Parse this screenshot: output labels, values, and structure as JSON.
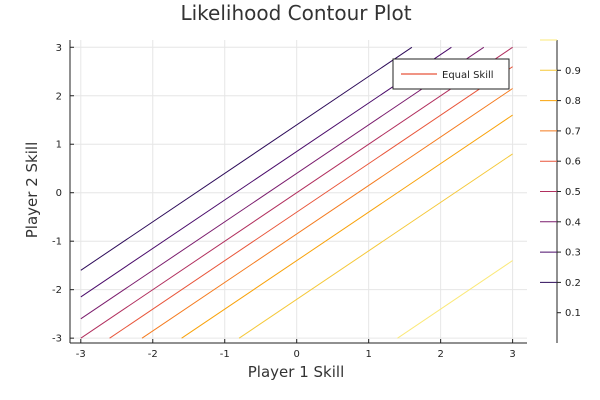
{
  "chart_data": {
    "type": "contour",
    "title": "Likelihood Contour Plot",
    "xlabel": "Player 1 Skill",
    "ylabel": "Player 2 Skill",
    "xlim": [
      -3.15,
      3.2
    ],
    "ylim": [
      -3.1,
      3.15
    ],
    "xticks": [
      -3,
      -2,
      -1,
      0,
      1,
      2,
      3
    ],
    "yticks": [
      -3,
      -2,
      -1,
      0,
      1,
      2,
      3
    ],
    "grid": true,
    "legend": {
      "position": "top-right",
      "entries": [
        {
          "label": "Equal Skill",
          "color": "#e8553a"
        }
      ]
    },
    "colorbar": {
      "range": [
        0,
        1
      ],
      "ticks": [
        0.1,
        0.2,
        0.3,
        0.4,
        0.5,
        0.6,
        0.7,
        0.8,
        0.9
      ],
      "tick_labels": [
        "0.1",
        "0.2",
        "0.3",
        "0.4",
        "0.5",
        "0.6",
        "0.7",
        "0.8",
        "0.9"
      ]
    },
    "series": [
      {
        "level": 0.2,
        "color": "#2d0b59",
        "points": [
          [
            -3,
            -1.6
          ],
          [
            1.6,
            3
          ]
        ]
      },
      {
        "level": 0.3,
        "color": "#4a0b6a",
        "points": [
          [
            -3,
            -2.15
          ],
          [
            2.15,
            3
          ]
        ]
      },
      {
        "level": 0.4,
        "color": "#7a1c6d",
        "points": [
          [
            -3,
            -2.6
          ],
          [
            2.6,
            3
          ]
        ]
      },
      {
        "level": 0.5,
        "color": "#b12f5e",
        "points": [
          [
            -3,
            -3
          ],
          [
            3,
            3
          ]
        ]
      },
      {
        "level": 0.6,
        "color": "#e8553a",
        "points": [
          [
            -2.6,
            -3
          ],
          [
            3,
            2.6
          ]
        ]
      },
      {
        "level": 0.7,
        "color": "#f47b1f",
        "points": [
          [
            -2.15,
            -3
          ],
          [
            3,
            2.15
          ]
        ]
      },
      {
        "level": 0.8,
        "color": "#f9a20a",
        "points": [
          [
            -1.6,
            -3
          ],
          [
            3,
            1.6
          ]
        ]
      },
      {
        "level": 0.9,
        "color": "#f5c839",
        "points": [
          [
            -0.8,
            -3
          ],
          [
            3,
            0.8
          ]
        ]
      },
      {
        "level": 1.0,
        "color": "#fbe97a",
        "points": [
          [
            1.4,
            -3
          ],
          [
            3,
            -1.4
          ]
        ]
      }
    ]
  }
}
